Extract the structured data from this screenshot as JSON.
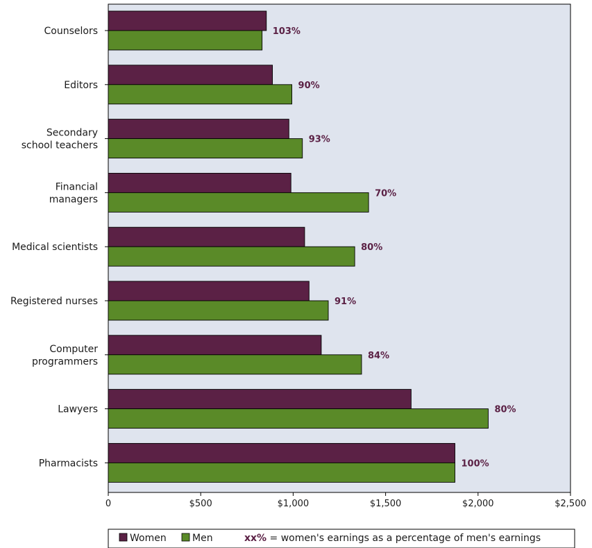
{
  "chart_data": {
    "type": "bar",
    "orientation": "horizontal",
    "categories": [
      [
        "Counselors"
      ],
      [
        "Editors"
      ],
      [
        "Secondary",
        "school teachers"
      ],
      [
        "Financial",
        "managers"
      ],
      [
        "Medical scientists"
      ],
      [
        "Registered nurses"
      ],
      [
        "Computer",
        "programmers"
      ],
      [
        "Lawyers"
      ],
      [
        "Pharmacists"
      ]
    ],
    "series": [
      {
        "name": "Women",
        "color": "#5b2145",
        "values": [
          855,
          888,
          977,
          988,
          1062,
          1086,
          1152,
          1638,
          1875
        ]
      },
      {
        "name": "Men",
        "color": "#5a8a28",
        "values": [
          832,
          993,
          1050,
          1408,
          1333,
          1190,
          1370,
          2055,
          1875
        ]
      }
    ],
    "ratio_labels": [
      "103%",
      "90%",
      "93%",
      "70%",
      "80%",
      "91%",
      "84%",
      "80%",
      "100%"
    ],
    "xlim": [
      0,
      2500
    ],
    "xticks": [
      0,
      500,
      1000,
      1500,
      2000,
      2500
    ],
    "xtick_labels": [
      "0",
      "$500",
      "$1,000",
      "$1,500",
      "$2,000",
      "$2,500"
    ],
    "plot_background": "#dfe4ee",
    "grid": false,
    "legend": {
      "position": "bottom",
      "women_label": "Women",
      "men_label": "Men",
      "note_key": "xx%",
      "note_text": " = women's earnings as a percentage of men's earnings"
    }
  }
}
